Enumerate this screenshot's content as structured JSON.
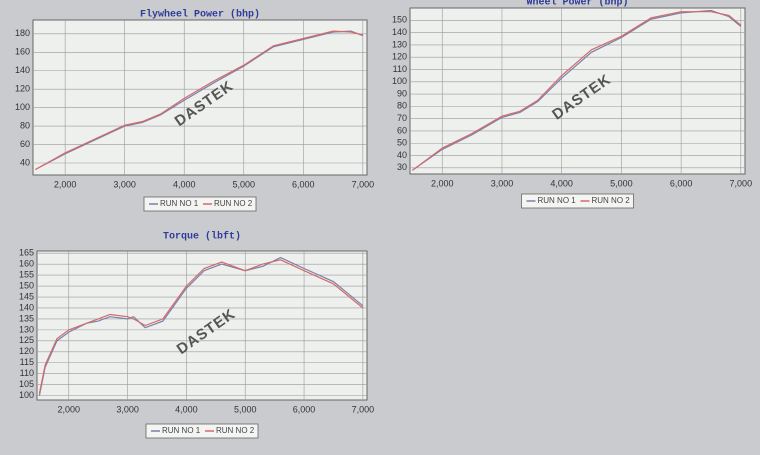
{
  "chart_data": [
    {
      "type": "line",
      "title": "Flywheel Power (bhp)",
      "watermark": "DASTEK",
      "x": [
        1500,
        2000,
        2500,
        3000,
        3300,
        3600,
        4000,
        4500,
        5000,
        5500,
        6000,
        6500,
        6800,
        7000
      ],
      "series": [
        {
          "name": "RUN NO 1",
          "color": "#7b80aa",
          "values": [
            33,
            50,
            65,
            80,
            84,
            92,
            108,
            127,
            145,
            166,
            174,
            182,
            183,
            178
          ]
        },
        {
          "name": "RUN NO 2",
          "color": "#d46a6a",
          "values": [
            33,
            51,
            66,
            81,
            85,
            93,
            110,
            129,
            146,
            167,
            175,
            183,
            182,
            179
          ]
        }
      ],
      "xlim": [
        1460,
        7070
      ],
      "ylim": [
        27,
        195
      ],
      "xticks": [
        {
          "value": 2000,
          "label": "2,000"
        },
        {
          "value": 3000,
          "label": "3,000"
        },
        {
          "value": 4000,
          "label": "4,000"
        },
        {
          "value": 5000,
          "label": "5,000"
        },
        {
          "value": 6000,
          "label": "6,000"
        },
        {
          "value": 7000,
          "label": "7,000"
        }
      ],
      "yticks": [
        40,
        60,
        80,
        100,
        120,
        140,
        160,
        180
      ],
      "grid": true
    },
    {
      "type": "line",
      "title": "Wheel Power (bhp)",
      "watermark": "DASTEK",
      "x": [
        1500,
        2000,
        2500,
        3000,
        3300,
        3600,
        4000,
        4500,
        5000,
        5500,
        6000,
        6500,
        6800,
        7000
      ],
      "series": [
        {
          "name": "RUN NO 1",
          "color": "#7b80aa",
          "values": [
            28,
            45,
            57,
            71,
            75,
            84,
            103,
            124,
            136,
            151,
            156,
            158,
            153,
            145
          ]
        },
        {
          "name": "RUN NO 2",
          "color": "#d46a6a",
          "values": [
            28,
            46,
            58,
            72,
            76,
            85,
            105,
            126,
            137,
            152,
            157,
            157,
            154,
            146
          ]
        }
      ],
      "xlim": [
        1460,
        7070
      ],
      "ylim": [
        25,
        160
      ],
      "xticks": [
        {
          "value": 2000,
          "label": "2,000"
        },
        {
          "value": 3000,
          "label": "3,000"
        },
        {
          "value": 4000,
          "label": "4,000"
        },
        {
          "value": 5000,
          "label": "5,000"
        },
        {
          "value": 6000,
          "label": "6,000"
        },
        {
          "value": 7000,
          "label": "7,000"
        }
      ],
      "yticks": [
        30,
        40,
        50,
        60,
        70,
        80,
        90,
        100,
        110,
        120,
        130,
        140,
        150
      ],
      "grid": true
    },
    {
      "type": "line",
      "title": "Torque (lbft)",
      "watermark": "DASTEK",
      "x": [
        1500,
        1600,
        1800,
        2000,
        2300,
        2500,
        2700,
        3000,
        3100,
        3300,
        3600,
        4000,
        4300,
        4600,
        5000,
        5300,
        5600,
        6000,
        6500,
        7000
      ],
      "series": [
        {
          "name": "RUN NO 1",
          "color": "#7b80aa",
          "values": [
            100,
            113,
            125,
            129,
            133,
            134,
            136,
            135,
            136,
            131,
            134,
            149,
            157,
            160,
            157,
            159,
            163,
            158,
            152,
            141
          ]
        },
        {
          "name": "RUN NO 2",
          "color": "#d46a6a",
          "values": [
            101,
            114,
            126,
            130,
            133,
            135,
            137,
            136,
            135,
            132,
            135,
            150,
            158,
            161,
            157,
            160,
            162,
            157,
            151,
            140
          ]
        }
      ],
      "xlim": [
        1460,
        7070
      ],
      "ylim": [
        98,
        166
      ],
      "xticks": [
        {
          "value": 2000,
          "label": "2,000"
        },
        {
          "value": 3000,
          "label": "3,000"
        },
        {
          "value": 4000,
          "label": "4,000"
        },
        {
          "value": 5000,
          "label": "5,000"
        },
        {
          "value": 6000,
          "label": "6,000"
        },
        {
          "value": 7000,
          "label": "7,000"
        }
      ],
      "yticks": [
        100,
        105,
        110,
        115,
        120,
        125,
        130,
        135,
        140,
        145,
        150,
        155,
        160,
        165
      ],
      "grid": true
    }
  ]
}
